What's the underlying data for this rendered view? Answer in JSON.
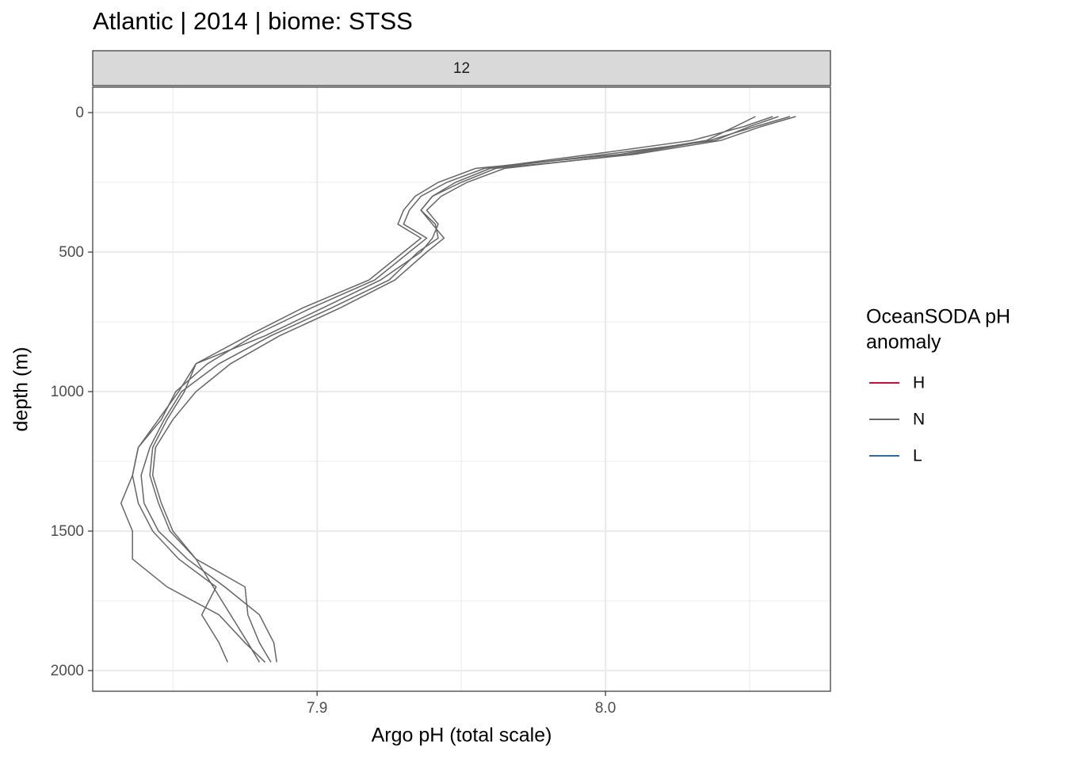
{
  "chart_data": {
    "type": "line",
    "title": "Atlantic | 2014 | biome: STSS",
    "facet_label": "12",
    "x_label": "Argo pH (total scale)",
    "y_label": "depth (m)",
    "xlim": [
      7.8222,
      8.078
    ],
    "xticks": [
      7.9,
      {
        "value": 8,
        "label": "8.0"
      }
    ],
    "xminor_ticks": [
      7.85,
      7.95,
      8.05
    ],
    "ylim": [
      -91,
      2074
    ],
    "y_reversed": true,
    "yticks": [
      0,
      500,
      1000,
      1500,
      2000
    ],
    "yminor_ticks": [
      250,
      750,
      1250,
      1750
    ],
    "grid": true,
    "legend_title": [
      "OceanSODA pH",
      "anomaly"
    ],
    "legend_position": "right",
    "series": [
      {
        "name": "H",
        "color": "#c0143c",
        "profiles": []
      },
      {
        "name": "N",
        "color": "#666666",
        "profiles": [
          {
            "x": [
              8.066,
              8.054,
              8.04,
              8.01,
              7.962,
              7.95,
              7.94,
              7.936,
              7.941,
              7.942,
              7.935,
              7.925,
              7.905,
              7.884,
              7.866,
              7.853,
              7.847,
              7.842,
              7.839,
              7.84,
              7.845,
              7.855,
              7.868,
              7.88,
              7.885,
              7.886
            ],
            "y": [
              14,
              50,
              100,
              150,
              200,
              250,
              300,
              350,
              400,
              450,
              500,
              600,
              700,
              800,
              900,
              1000,
              1100,
              1200,
              1300,
              1400,
              1500,
              1600,
              1700,
              1800,
              1900,
              1970
            ]
          },
          {
            "x": [
              8.058,
              8.048,
              8.03,
              7.995,
              7.958,
              7.945,
              7.936,
              7.932,
              7.93,
              7.938,
              7.932,
              7.92,
              7.898,
              7.878,
              7.862,
              7.851,
              7.846,
              7.838,
              7.836,
              7.838,
              7.843,
              7.852,
              7.865,
              7.86,
              7.866,
              7.869
            ],
            "y": [
              14,
              50,
              100,
              150,
              200,
              250,
              300,
              350,
              400,
              450,
              500,
              600,
              700,
              800,
              900,
              1000,
              1100,
              1200,
              1300,
              1400,
              1500,
              1600,
              1700,
              1800,
              1900,
              1970
            ]
          },
          {
            "x": [
              8.052,
              8.045,
              8.035,
              8.005,
              7.955,
              7.942,
              7.934,
              7.93,
              7.928,
              7.936,
              7.93,
              7.918,
              7.895,
              7.876,
              7.858,
              7.852,
              7.845,
              7.838,
              7.836,
              7.832,
              7.836,
              7.836,
              7.848,
              7.866,
              7.875,
              7.882
            ],
            "y": [
              14,
              50,
              100,
              150,
              200,
              250,
              300,
              350,
              400,
              450,
              500,
              600,
              700,
              800,
              900,
              1000,
              1100,
              1200,
              1300,
              1400,
              1500,
              1600,
              1700,
              1800,
              1900,
              1970
            ]
          },
          {
            "x": [
              8.06,
              8.05,
              8.038,
              8.0,
              7.96,
              7.948,
              7.94,
              7.936,
              7.94,
              7.944,
              7.938,
              7.927,
              7.908,
              7.887,
              7.87,
              7.858,
              7.85,
              7.844,
              7.843,
              7.846,
              7.85,
              7.858,
              7.864,
              7.87,
              7.876,
              7.88
            ],
            "y": [
              14,
              50,
              100,
              150,
              200,
              250,
              300,
              350,
              400,
              450,
              500,
              600,
              700,
              800,
              900,
              1000,
              1100,
              1200,
              1300,
              1400,
              1500,
              1600,
              1700,
              1800,
              1900,
              1970
            ]
          },
          {
            "x": [
              8.064,
              8.052,
              8.036,
              8.008,
              7.965,
              7.952,
              7.943,
              7.938,
              7.942,
              7.94,
              7.936,
              7.922,
              7.902,
              7.882,
              7.858,
              7.854,
              7.848,
              7.843,
              7.842,
              7.845,
              7.849,
              7.858,
              7.875,
              7.876,
              7.88,
              7.884
            ],
            "y": [
              14,
              50,
              100,
              150,
              200,
              250,
              300,
              350,
              400,
              450,
              500,
              600,
              700,
              800,
              900,
              1000,
              1100,
              1200,
              1300,
              1400,
              1500,
              1600,
              1700,
              1800,
              1900,
              1970
            ]
          }
        ]
      },
      {
        "name": "L",
        "color": "#2f6aa5",
        "profiles": []
      }
    ]
  }
}
